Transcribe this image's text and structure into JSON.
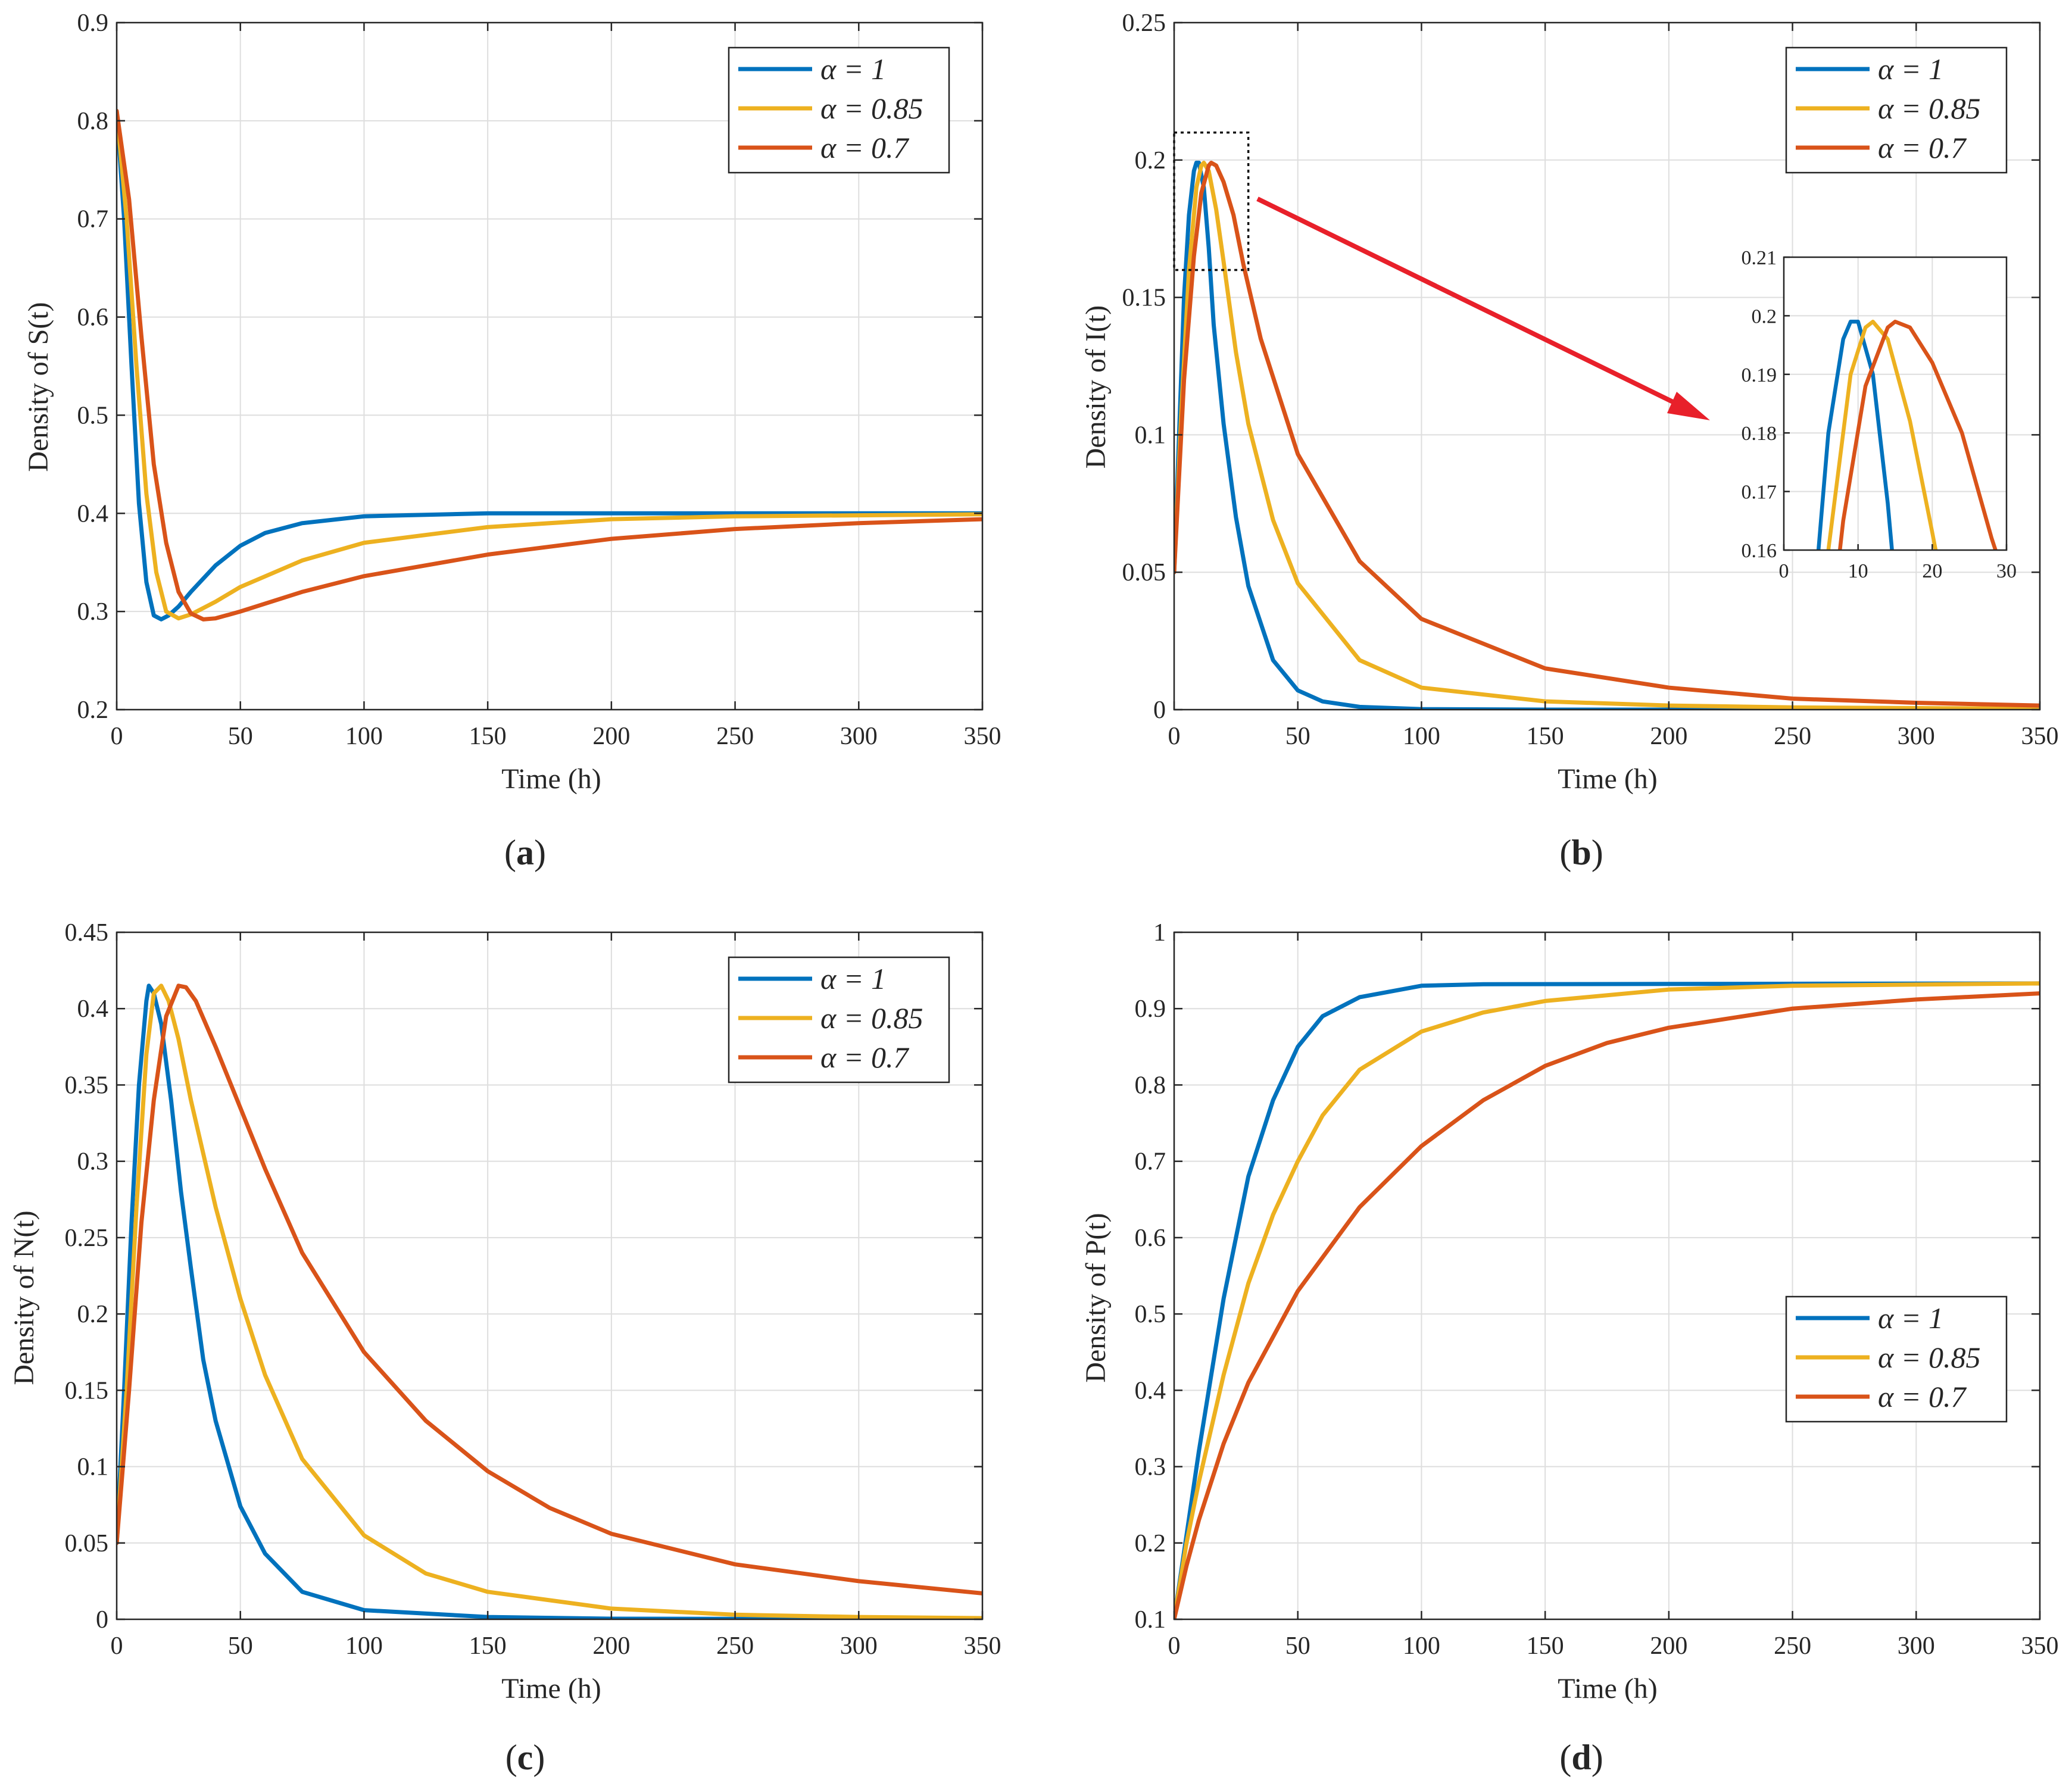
{
  "colors": {
    "blue": "#0072BD",
    "yellow": "#EDB120",
    "red": "#D95319",
    "arrow": "#E8202A"
  },
  "legend": [
    "α = 1",
    "α = 0.85",
    "α = 0.7"
  ],
  "panels": [
    {
      "id": "a",
      "label_letter": "a",
      "ylabel": "Density of S(t)",
      "xlabel": "Time (h)"
    },
    {
      "id": "b",
      "label_letter": "b",
      "ylabel": "Density of I(t)",
      "xlabel": "Time (h)"
    },
    {
      "id": "c",
      "label_letter": "c",
      "ylabel": "Density of N(t)",
      "xlabel": "Time (h)"
    },
    {
      "id": "d",
      "label_letter": "d",
      "ylabel": "Density of P(t)",
      "xlabel": "Time (h)"
    }
  ],
  "chart_data": [
    {
      "id": "a",
      "type": "line",
      "title": "(a)",
      "xlabel": "Time (h)",
      "ylabel": "Density of S(t)",
      "xlim": [
        0,
        350
      ],
      "ylim": [
        0.2,
        0.9
      ],
      "xticks": [
        0,
        50,
        100,
        150,
        200,
        250,
        300,
        350
      ],
      "yticks": [
        0.2,
        0.3,
        0.4,
        0.5,
        0.6,
        0.7,
        0.8,
        0.9
      ],
      "grid": true,
      "legend_position": "top-right",
      "series": [
        {
          "name": "α = 1",
          "color": "#0072BD",
          "points": [
            [
              0,
              0.81
            ],
            [
              3,
              0.7
            ],
            [
              6,
              0.55
            ],
            [
              9,
              0.41
            ],
            [
              12,
              0.33
            ],
            [
              15,
              0.296
            ],
            [
              18,
              0.292
            ],
            [
              21,
              0.296
            ],
            [
              25,
              0.305
            ],
            [
              30,
              0.32
            ],
            [
              40,
              0.347
            ],
            [
              50,
              0.367
            ],
            [
              60,
              0.38
            ],
            [
              75,
              0.39
            ],
            [
              100,
              0.397
            ],
            [
              150,
              0.4
            ],
            [
              200,
              0.4
            ],
            [
              350,
              0.4
            ]
          ]
        },
        {
          "name": "α = 0.85",
          "color": "#EDB120",
          "points": [
            [
              0,
              0.81
            ],
            [
              4,
              0.7
            ],
            [
              8,
              0.55
            ],
            [
              12,
              0.42
            ],
            [
              16,
              0.34
            ],
            [
              20,
              0.3
            ],
            [
              25,
              0.293
            ],
            [
              30,
              0.297
            ],
            [
              40,
              0.31
            ],
            [
              50,
              0.325
            ],
            [
              75,
              0.352
            ],
            [
              100,
              0.37
            ],
            [
              150,
              0.386
            ],
            [
              200,
              0.394
            ],
            [
              250,
              0.397
            ],
            [
              350,
              0.399
            ]
          ]
        },
        {
          "name": "α = 0.7",
          "color": "#D95319",
          "points": [
            [
              0,
              0.81
            ],
            [
              5,
              0.72
            ],
            [
              10,
              0.58
            ],
            [
              15,
              0.45
            ],
            [
              20,
              0.37
            ],
            [
              25,
              0.32
            ],
            [
              30,
              0.298
            ],
            [
              35,
              0.292
            ],
            [
              40,
              0.293
            ],
            [
              50,
              0.3
            ],
            [
              75,
              0.32
            ],
            [
              100,
              0.336
            ],
            [
              150,
              0.358
            ],
            [
              200,
              0.374
            ],
            [
              250,
              0.384
            ],
            [
              300,
              0.39
            ],
            [
              350,
              0.394
            ]
          ]
        }
      ]
    },
    {
      "id": "b",
      "type": "line",
      "title": "(b)",
      "xlabel": "Time (h)",
      "ylabel": "Density of I(t)",
      "xlim": [
        0,
        350
      ],
      "ylim": [
        0,
        0.25
      ],
      "xticks": [
        0,
        50,
        100,
        150,
        200,
        250,
        300,
        350
      ],
      "yticks": [
        0,
        0.05,
        0.1,
        0.15,
        0.2,
        0.25
      ],
      "grid": true,
      "legend_position": "top-right",
      "inset": {
        "xlim": [
          0,
          30
        ],
        "ylim": [
          0.16,
          0.21
        ],
        "xticks": [
          0,
          10,
          20,
          30
        ],
        "yticks": [
          0.16,
          0.17,
          0.18,
          0.19,
          0.2,
          0.21
        ],
        "zoom_box": {
          "x": [
            0,
            30
          ],
          "y": [
            0.16,
            0.21
          ]
        }
      },
      "series": [
        {
          "name": "α = 1",
          "color": "#0072BD",
          "points": [
            [
              0,
              0.05
            ],
            [
              2,
              0.1
            ],
            [
              4,
              0.15
            ],
            [
              6,
              0.18
            ],
            [
              8,
              0.196
            ],
            [
              9,
              0.199
            ],
            [
              10,
              0.199
            ],
            [
              12,
              0.19
            ],
            [
              14,
              0.168
            ],
            [
              16,
              0.14
            ],
            [
              20,
              0.104
            ],
            [
              25,
              0.07
            ],
            [
              30,
              0.045
            ],
            [
              40,
              0.018
            ],
            [
              50,
              0.007
            ],
            [
              60,
              0.003
            ],
            [
              75,
              0.001
            ],
            [
              100,
              0.0002
            ],
            [
              150,
              0
            ],
            [
              350,
              0
            ]
          ]
        },
        {
          "name": "α = 0.85",
          "color": "#EDB120",
          "points": [
            [
              0,
              0.05
            ],
            [
              3,
              0.11
            ],
            [
              6,
              0.16
            ],
            [
              9,
              0.19
            ],
            [
              11,
              0.198
            ],
            [
              12,
              0.199
            ],
            [
              14,
              0.196
            ],
            [
              17,
              0.182
            ],
            [
              20,
              0.163
            ],
            [
              25,
              0.13
            ],
            [
              30,
              0.104
            ],
            [
              40,
              0.069
            ],
            [
              50,
              0.046
            ],
            [
              75,
              0.018
            ],
            [
              100,
              0.008
            ],
            [
              150,
              0.003
            ],
            [
              200,
              0.0015
            ],
            [
              250,
              0.0008
            ],
            [
              350,
              0.0003
            ]
          ]
        },
        {
          "name": "α = 0.7",
          "color": "#D95319",
          "points": [
            [
              0,
              0.05
            ],
            [
              4,
              0.12
            ],
            [
              8,
              0.165
            ],
            [
              11,
              0.188
            ],
            [
              14,
              0.198
            ],
            [
              15,
              0.199
            ],
            [
              17,
              0.198
            ],
            [
              20,
              0.192
            ],
            [
              24,
              0.18
            ],
            [
              28,
              0.162
            ],
            [
              35,
              0.135
            ],
            [
              50,
              0.093
            ],
            [
              75,
              0.054
            ],
            [
              100,
              0.033
            ],
            [
              150,
              0.015
            ],
            [
              200,
              0.008
            ],
            [
              250,
              0.004
            ],
            [
              300,
              0.0025
            ],
            [
              350,
              0.0015
            ]
          ]
        }
      ]
    },
    {
      "id": "c",
      "type": "line",
      "title": "(c)",
      "xlabel": "Time (h)",
      "ylabel": "Density of N(t)",
      "xlim": [
        0,
        350
      ],
      "ylim": [
        0,
        0.45
      ],
      "xticks": [
        0,
        50,
        100,
        150,
        200,
        250,
        300,
        350
      ],
      "yticks": [
        0,
        0.05,
        0.1,
        0.15,
        0.2,
        0.25,
        0.3,
        0.35,
        0.4,
        0.45
      ],
      "grid": true,
      "legend_position": "top-right",
      "series": [
        {
          "name": "α = 1",
          "color": "#0072BD",
          "points": [
            [
              0,
              0.05
            ],
            [
              3,
              0.15
            ],
            [
              6,
              0.26
            ],
            [
              9,
              0.35
            ],
            [
              12,
              0.405
            ],
            [
              13,
              0.415
            ],
            [
              15,
              0.41
            ],
            [
              18,
              0.39
            ],
            [
              22,
              0.34
            ],
            [
              26,
              0.28
            ],
            [
              30,
              0.23
            ],
            [
              35,
              0.17
            ],
            [
              40,
              0.13
            ],
            [
              50,
              0.074
            ],
            [
              60,
              0.043
            ],
            [
              75,
              0.018
            ],
            [
              100,
              0.006
            ],
            [
              150,
              0.0015
            ],
            [
              200,
              0.0004
            ],
            [
              350,
              0
            ]
          ]
        },
        {
          "name": "α = 0.85",
          "color": "#EDB120",
          "points": [
            [
              0,
              0.05
            ],
            [
              4,
              0.15
            ],
            [
              8,
              0.27
            ],
            [
              12,
              0.37
            ],
            [
              15,
              0.41
            ],
            [
              18,
              0.415
            ],
            [
              21,
              0.405
            ],
            [
              25,
              0.38
            ],
            [
              30,
              0.34
            ],
            [
              40,
              0.27
            ],
            [
              50,
              0.21
            ],
            [
              60,
              0.16
            ],
            [
              75,
              0.105
            ],
            [
              100,
              0.055
            ],
            [
              125,
              0.03
            ],
            [
              150,
              0.018
            ],
            [
              200,
              0.007
            ],
            [
              250,
              0.003
            ],
            [
              300,
              0.0015
            ],
            [
              350,
              0.0008
            ]
          ]
        },
        {
          "name": "α = 0.7",
          "color": "#D95319",
          "points": [
            [
              0,
              0.05
            ],
            [
              5,
              0.15
            ],
            [
              10,
              0.26
            ],
            [
              15,
              0.34
            ],
            [
              20,
              0.395
            ],
            [
              25,
              0.415
            ],
            [
              28,
              0.414
            ],
            [
              32,
              0.405
            ],
            [
              40,
              0.375
            ],
            [
              50,
              0.335
            ],
            [
              60,
              0.295
            ],
            [
              75,
              0.24
            ],
            [
              100,
              0.175
            ],
            [
              125,
              0.13
            ],
            [
              150,
              0.097
            ],
            [
              175,
              0.073
            ],
            [
              200,
              0.056
            ],
            [
              250,
              0.036
            ],
            [
              300,
              0.025
            ],
            [
              350,
              0.017
            ]
          ]
        }
      ]
    },
    {
      "id": "d",
      "type": "line",
      "title": "(d)",
      "xlabel": "Time (h)",
      "ylabel": "Density of P(t)",
      "xlim": [
        0,
        350
      ],
      "ylim": [
        0.1,
        1
      ],
      "xticks": [
        0,
        50,
        100,
        150,
        200,
        250,
        300,
        350
      ],
      "yticks": [
        0.1,
        0.2,
        0.3,
        0.4,
        0.5,
        0.6,
        0.7,
        0.8,
        0.9,
        1
      ],
      "grid": true,
      "legend_position": "center-right",
      "series": [
        {
          "name": "α = 1",
          "color": "#0072BD",
          "points": [
            [
              0,
              0.1
            ],
            [
              5,
              0.21
            ],
            [
              10,
              0.32
            ],
            [
              20,
              0.52
            ],
            [
              30,
              0.68
            ],
            [
              40,
              0.78
            ],
            [
              50,
              0.85
            ],
            [
              60,
              0.89
            ],
            [
              75,
              0.915
            ],
            [
              100,
              0.93
            ],
            [
              125,
              0.932
            ],
            [
              350,
              0.933
            ]
          ]
        },
        {
          "name": "α = 0.85",
          "color": "#EDB120",
          "points": [
            [
              0,
              0.1
            ],
            [
              5,
              0.2
            ],
            [
              10,
              0.28
            ],
            [
              20,
              0.42
            ],
            [
              30,
              0.54
            ],
            [
              40,
              0.63
            ],
            [
              50,
              0.7
            ],
            [
              60,
              0.76
            ],
            [
              75,
              0.82
            ],
            [
              100,
              0.87
            ],
            [
              125,
              0.895
            ],
            [
              150,
              0.91
            ],
            [
              200,
              0.925
            ],
            [
              250,
              0.93
            ],
            [
              350,
              0.933
            ]
          ]
        },
        {
          "name": "α = 0.7",
          "color": "#D95319",
          "points": [
            [
              0,
              0.1
            ],
            [
              5,
              0.17
            ],
            [
              10,
              0.23
            ],
            [
              20,
              0.33
            ],
            [
              30,
              0.41
            ],
            [
              40,
              0.47
            ],
            [
              50,
              0.53
            ],
            [
              75,
              0.64
            ],
            [
              100,
              0.72
            ],
            [
              125,
              0.78
            ],
            [
              150,
              0.825
            ],
            [
              175,
              0.855
            ],
            [
              200,
              0.875
            ],
            [
              250,
              0.9
            ],
            [
              300,
              0.912
            ],
            [
              350,
              0.92
            ]
          ]
        }
      ]
    }
  ]
}
